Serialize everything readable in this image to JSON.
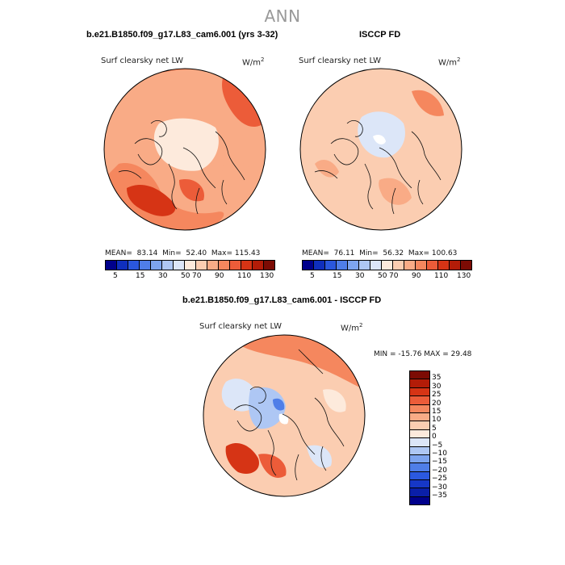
{
  "page": {
    "title": "ANN",
    "panel1_header": "b.e21.B1850.f09_g17.L83_cam6.001 (yrs 3-32)",
    "panel2_header": "ISCCP FD",
    "diff_header": "b.e21.B1850.f09_g17.L83_cam6.001 - ISCCP FD"
  },
  "colors": {
    "coast": "#111111",
    "ocean_ring": "#000000"
  },
  "maps": [
    {
      "variable": "Surf clearsky net LW",
      "units_base": "W/m",
      "units_exp": "2",
      "mean_label": "MEAN=",
      "mean": "83.14",
      "min_label": "Min=",
      "min": "52.40",
      "max_label": "Max=",
      "max": "115.43"
    },
    {
      "variable": "Surf clearsky net LW",
      "units_base": "W/m",
      "units_exp": "2",
      "mean_label": "MEAN=",
      "mean": "76.11",
      "min_label": "Min=",
      "min": "56.32",
      "max_label": "Max=",
      "max": "100.63"
    }
  ],
  "diff_map": {
    "variable": "Surf clearsky net LW",
    "units_base": "W/m",
    "units_exp": "2",
    "minmax_text": "MIN = -15.76 MAX =  29.48"
  },
  "abs_colorbar": {
    "colors": [
      "#00008b",
      "#0f2fbd",
      "#2a57dd",
      "#4f7ee8",
      "#7da4ef",
      "#aec7f4",
      "#dce6f8",
      "#fdeadc",
      "#fbcdb1",
      "#f9ab86",
      "#f5875e",
      "#ec5c39",
      "#d63415",
      "#b31c08",
      "#7c0b04"
    ],
    "tick_labels": [
      "5",
      "15",
      "30",
      "50",
      "70",
      "90",
      "110",
      "130"
    ]
  },
  "diff_colorbar": {
    "colors": [
      "#00008b",
      "#0a1fa8",
      "#1637c7",
      "#2b59e0",
      "#4f7ee8",
      "#7da4ef",
      "#aec7f4",
      "#dce6f8",
      "#fdeadc",
      "#fbcdb1",
      "#f9ab86",
      "#f5875e",
      "#ec5c39",
      "#d63415",
      "#b31c08",
      "#7c0b04"
    ],
    "tick_labels": [
      "35",
      "30",
      "25",
      "20",
      "15",
      "10",
      "5",
      "0",
      "−5",
      "−10",
      "−15",
      "−20",
      "−25",
      "−30",
      "−35"
    ]
  }
}
